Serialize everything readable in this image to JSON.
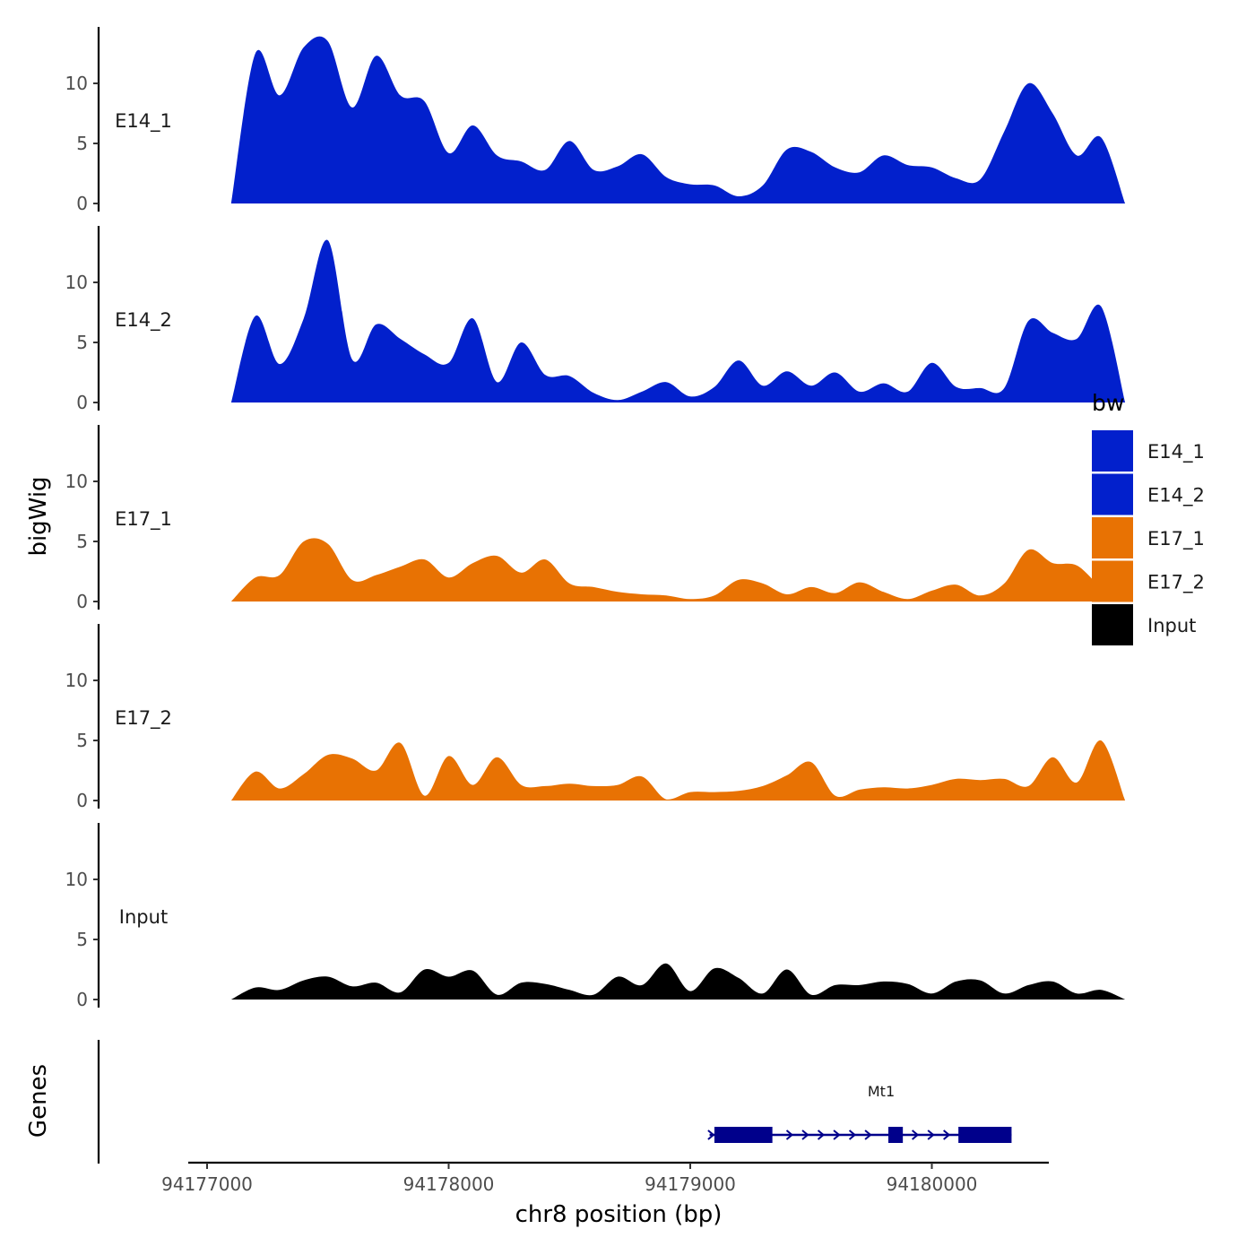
{
  "chart_data": {
    "type": "area",
    "title": "",
    "xlabel": "chr8 position (bp)",
    "ylabel": "bigWig",
    "genes_label": "Genes",
    "xlim": [
      94176630,
      94180480
    ],
    "x_ticks": [
      94177000,
      94178000,
      94179000,
      94180000
    ],
    "x_tick_labels": [
      "94177000",
      "94178000",
      "94179000",
      "94180000"
    ],
    "ylim": [
      0,
      14.5
    ],
    "y_ticks": [
      0,
      5,
      10
    ],
    "y_tick_labels": [
      "0",
      "5",
      "10"
    ],
    "x_start": 94177100,
    "x_step": 100,
    "legend_title": "bw",
    "series": [
      {
        "name": "E14_1",
        "color": "#0220CC",
        "values": [
          0,
          12.5,
          9,
          13,
          13.5,
          8,
          12.3,
          9,
          8.5,
          4.2,
          6.5,
          4,
          3.5,
          2.8,
          5.2,
          2.8,
          3.1,
          4.1,
          2.2,
          1.6,
          1.5,
          0.6,
          1.5,
          4.5,
          4.3,
          3.0,
          2.6,
          4.0,
          3.2,
          3.0,
          2.1,
          2.0,
          6.0,
          10.0,
          7.5,
          4.0,
          5.5,
          0
        ]
      },
      {
        "name": "E14_2",
        "color": "#0220CC",
        "values": [
          0,
          7.2,
          3.2,
          7.0,
          13.5,
          3.6,
          6.5,
          5.3,
          4.0,
          3.3,
          7.0,
          1.7,
          5.0,
          2.3,
          2.2,
          0.8,
          0.2,
          0.9,
          1.7,
          0.5,
          1.3,
          3.5,
          1.4,
          2.6,
          1.4,
          2.5,
          0.9,
          1.6,
          0.9,
          3.3,
          1.3,
          1.2,
          1.2,
          6.8,
          5.8,
          5.3,
          8.0,
          0
        ]
      },
      {
        "name": "E17_1",
        "color": "#E87203",
        "values": [
          0,
          2.0,
          2.2,
          5.0,
          4.8,
          1.8,
          2.2,
          2.9,
          3.5,
          2.0,
          3.2,
          3.8,
          2.4,
          3.5,
          1.5,
          1.2,
          0.8,
          0.6,
          0.5,
          0.2,
          0.5,
          1.8,
          1.5,
          0.6,
          1.2,
          0.7,
          1.6,
          0.8,
          0.2,
          0.9,
          1.4,
          0.5,
          1.5,
          4.3,
          3.2,
          3.0,
          1.2,
          0
        ]
      },
      {
        "name": "E17_2",
        "color": "#E87203",
        "values": [
          0,
          2.4,
          1.0,
          2.2,
          3.8,
          3.5,
          2.5,
          4.8,
          0.4,
          3.7,
          1.3,
          3.6,
          1.3,
          1.2,
          1.4,
          1.2,
          1.3,
          2.0,
          0.1,
          0.7,
          0.7,
          0.8,
          1.2,
          2.1,
          3.2,
          0.4,
          0.9,
          1.1,
          1.0,
          1.3,
          1.8,
          1.7,
          1.8,
          1.2,
          3.6,
          1.5,
          5.0,
          0
        ]
      },
      {
        "name": "Input",
        "color": "#000000",
        "values": [
          0,
          1.0,
          0.8,
          1.6,
          1.9,
          1.1,
          1.4,
          0.6,
          2.5,
          1.9,
          2.4,
          0.4,
          1.4,
          1.3,
          0.8,
          0.4,
          1.9,
          1.2,
          3.0,
          0.7,
          2.6,
          1.8,
          0.5,
          2.5,
          0.4,
          1.2,
          1.2,
          1.5,
          1.3,
          0.5,
          1.5,
          1.6,
          0.5,
          1.2,
          1.5,
          0.5,
          0.8,
          0
        ]
      }
    ],
    "gene": {
      "name": "Mt1",
      "color": "#00008B",
      "start": 94179080,
      "end": 94180330,
      "exons": [
        [
          94179100,
          94179340
        ],
        [
          94179820,
          94179880
        ],
        [
          94180110,
          94180330
        ]
      ]
    }
  }
}
